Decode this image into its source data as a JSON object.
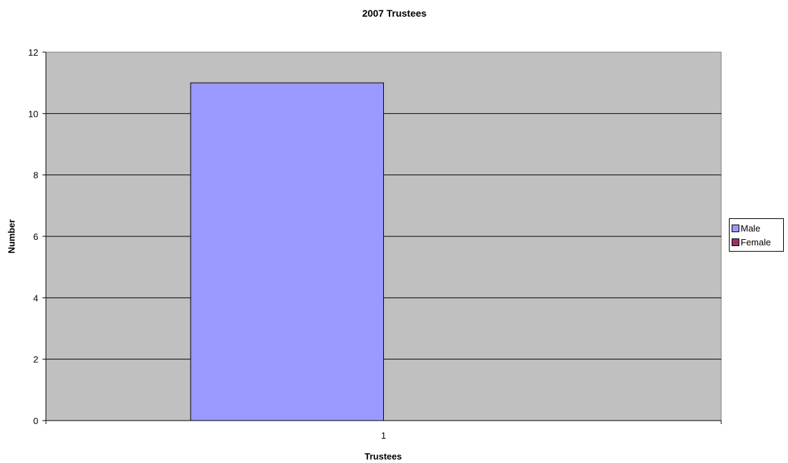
{
  "chart_data": {
    "type": "bar",
    "title": "2007 Trustees",
    "xlabel": "Trustees",
    "ylabel": "Number",
    "categories": [
      "1"
    ],
    "series": [
      {
        "name": "Male",
        "values": [
          11
        ],
        "color": "#9999ff"
      },
      {
        "name": "Female",
        "values": [
          0
        ],
        "color": "#993366"
      }
    ],
    "ylim": [
      0,
      12
    ],
    "yticks": [
      0,
      2,
      4,
      6,
      8,
      10,
      12
    ],
    "grid": true,
    "plot_background": "#c0c0c0",
    "legend_position": "right"
  }
}
